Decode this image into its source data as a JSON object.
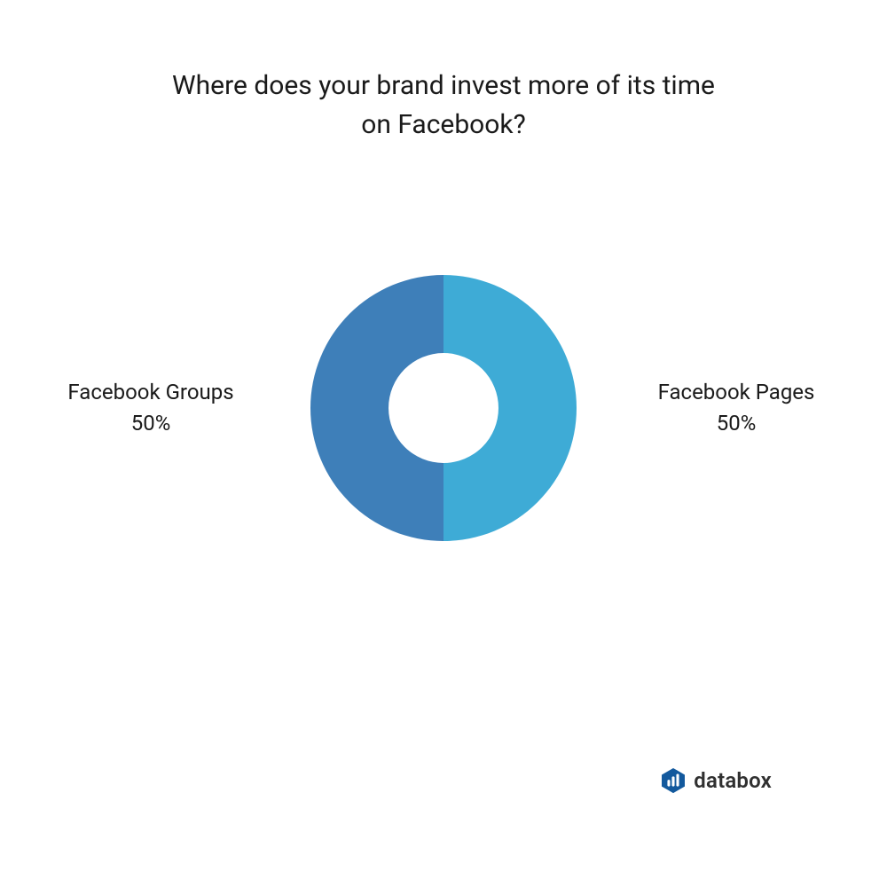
{
  "chart": {
    "type": "donut",
    "title_line1": "Where does your brand invest more of its time",
    "title_line2": "on Facebook?",
    "title_fontsize": 30,
    "title_color": "#1a1a1a",
    "background_color": "#ffffff",
    "outer_radius": 150,
    "inner_radius": 62,
    "slices": [
      {
        "label": "Facebook Pages",
        "value": 50,
        "percent_text": "50%",
        "color": "#3eabd6",
        "side": "right"
      },
      {
        "label": "Facebook Groups",
        "value": 50,
        "percent_text": "50%",
        "color": "#3e7fb9",
        "side": "left"
      }
    ],
    "label_fontsize": 24,
    "label_color": "#1a1a1a"
  },
  "brand": {
    "name": "databox",
    "logo_bg_color": "#13599d",
    "logo_bar_color": "#ffffff",
    "text_color": "#303030",
    "fontsize": 24
  }
}
